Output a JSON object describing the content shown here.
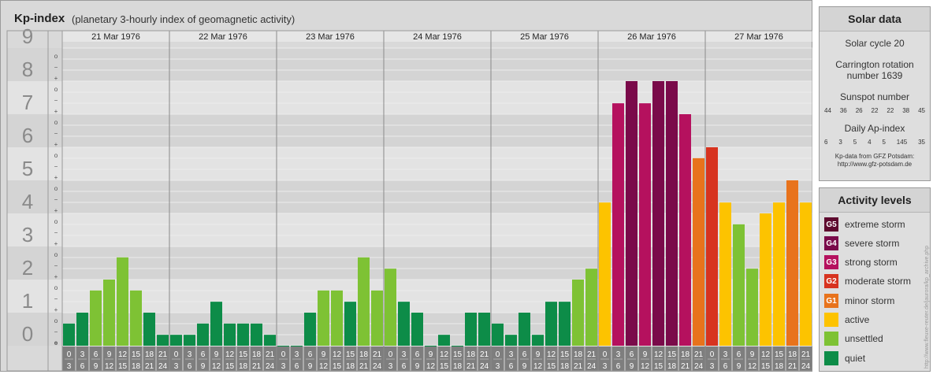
{
  "header": {
    "title": "Kp-index",
    "subtitle": "(planetary 3-hourly index of geomagnetic activity)"
  },
  "solar": {
    "title": "Solar data",
    "cycle": "Solar cycle 20",
    "carrington_line1": "Carrington rotation",
    "carrington_line2": "number 1639",
    "sunspot_title": "Sunspot number",
    "sunspot_values": [
      "44",
      "36",
      "26",
      "22",
      "22",
      "38",
      "45"
    ],
    "ap_title": "Daily Ap-index",
    "ap_values": [
      "6",
      "3",
      "5",
      "4",
      "5",
      "145",
      "35"
    ],
    "source_line1": "Kp-data from GFZ Potsdam:",
    "source_line2": "http://www.gfz-potsdam.de"
  },
  "activity": {
    "title": "Activity levels",
    "levels": [
      {
        "code": "G5",
        "label": "extreme storm",
        "color": "#5e0a2e"
      },
      {
        "code": "G4",
        "label": "severe storm",
        "color": "#7a0a4a"
      },
      {
        "code": "G3",
        "label": "strong storm",
        "color": "#b5115e"
      },
      {
        "code": "G2",
        "label": "moderate storm",
        "color": "#d7331f"
      },
      {
        "code": "G1",
        "label": "minor storm",
        "color": "#e8731c"
      },
      {
        "code": "",
        "label": "active",
        "color": "#fdc300"
      },
      {
        "code": "",
        "label": "unsettled",
        "color": "#7ec234"
      },
      {
        "code": "",
        "label": "quiet",
        "color": "#0d8c48"
      }
    ]
  },
  "watermark": "http://www.fleuxe-reuter.de/jaurora/kp_archive.php",
  "chart_data": {
    "type": "bar",
    "title": "Kp-index",
    "ylim": [
      0,
      9
    ],
    "y_ticks": [
      "0",
      "1",
      "2",
      "3",
      "4",
      "5",
      "6",
      "7",
      "8",
      "9"
    ],
    "minor_marks": [
      "+",
      "−",
      "o"
    ],
    "days": [
      "21 Mar 1976",
      "22 Mar 1976",
      "23 Mar 1976",
      "24 Mar 1976",
      "25 Mar 1976",
      "26 Mar 1976",
      "27 Mar 1976"
    ],
    "interval_top": [
      "0",
      "3",
      "6",
      "9",
      "12",
      "15",
      "18",
      "21"
    ],
    "interval_bottom": [
      "3",
      "6",
      "9",
      "12",
      "15",
      "18",
      "21",
      "24"
    ],
    "values": [
      [
        0.67,
        1.0,
        1.67,
        2.0,
        2.67,
        1.67,
        1.0,
        0.33
      ],
      [
        0.33,
        0.33,
        0.67,
        1.33,
        0.67,
        0.67,
        0.67,
        0.33
      ],
      [
        0.0,
        0.0,
        1.0,
        1.67,
        1.67,
        1.33,
        2.67,
        1.67
      ],
      [
        2.33,
        1.33,
        1.0,
        0.0,
        0.33,
        0.0,
        1.0,
        1.0
      ],
      [
        0.67,
        0.33,
        1.0,
        0.33,
        1.33,
        1.33,
        2.0,
        2.33
      ],
      [
        4.33,
        7.33,
        8.0,
        7.33,
        8.0,
        8.0,
        7.0,
        5.67
      ],
      [
        6.0,
        4.33,
        3.67,
        2.33,
        4.0,
        4.33,
        5.0,
        4.33
      ]
    ]
  }
}
